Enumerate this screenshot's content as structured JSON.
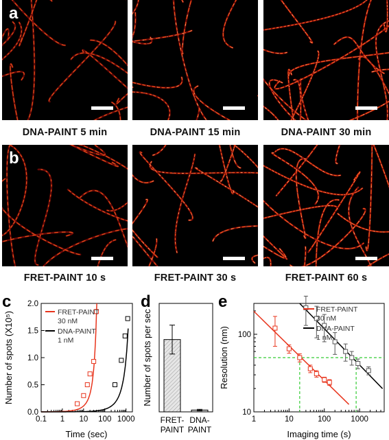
{
  "panel_labels": {
    "a": "a",
    "b": "b",
    "c": "c",
    "d": "d",
    "e": "e"
  },
  "row_a_captions": [
    "DNA-PAINT  5 min",
    "DNA-PAINT  15 min",
    "DNA-PAINT  30 min"
  ],
  "row_b_captions": [
    "FRET-PAINT  10 s",
    "FRET-PAINT  30 s",
    "FRET-PAINT  60 s"
  ],
  "colors": {
    "fret": "#e8341c",
    "dna": "#000000",
    "guide": "#33cc33",
    "bar_fill": "#d9d9d9"
  },
  "chart_data": [
    {
      "id": "c",
      "type": "scatter",
      "xlabel": "Time (sec)",
      "ylabel": "Number of spots (X10⁵)",
      "x_scale": "log",
      "xlim": [
        0.1,
        2000
      ],
      "ylim": [
        0,
        2.0
      ],
      "x_ticks": [
        0.1,
        1,
        10,
        100,
        1000
      ],
      "x_tick_labels": [
        "0.1",
        "1",
        "10",
        "100",
        "1000"
      ],
      "y_ticks": [
        0.0,
        0.5,
        1.0,
        1.5,
        2.0
      ],
      "y_tick_labels": [
        "0.0",
        "0.5",
        "1.0",
        "1.5",
        "2.0"
      ],
      "legend": [
        "FRET-PAINT",
        "30 nM",
        "DNA-PAINT",
        "1 nM"
      ],
      "legend_placement": "top-left",
      "series": [
        {
          "name": "FRET-PAINT 30 nM",
          "x": [
            5,
            10,
            15,
            20,
            30,
            40
          ],
          "y": [
            0.15,
            0.3,
            0.5,
            0.7,
            0.93,
            1.85
          ]
        },
        {
          "name": "DNA-PAINT 1 nM",
          "x": [
            300,
            600,
            900,
            1200
          ],
          "y": [
            0.5,
            0.95,
            1.4,
            1.72
          ]
        }
      ]
    },
    {
      "id": "d",
      "type": "bar",
      "ylabel": "Number of spots per sec",
      "categories": [
        "FRET-\nPAINT",
        "DNA-\nPAINT"
      ],
      "values": [
        200,
        5
      ],
      "errors": [
        40,
        2
      ],
      "ylim": [
        0,
        300
      ]
    },
    {
      "id": "e",
      "type": "scatter",
      "xlabel": "Imaging time (s)",
      "ylabel": "Resolution (nm)",
      "x_scale": "log",
      "y_scale": "log",
      "xlim": [
        1,
        5000
      ],
      "ylim": [
        10,
        250
      ],
      "x_ticks": [
        1,
        10,
        100,
        1000
      ],
      "x_tick_labels": [
        "1",
        "10",
        "100",
        "1000"
      ],
      "y_ticks": [
        10,
        100
      ],
      "y_tick_labels": [
        "10",
        "100"
      ],
      "legend": [
        "FRET-PAINT",
        "30 nM",
        "DNA-PAINT",
        "1 nM"
      ],
      "legend_placement": "top-right",
      "guides": {
        "y": 50,
        "x": [
          20,
          800
        ]
      },
      "series": [
        {
          "name": "FRET-PAINT 30 nM",
          "x": [
            4,
            10,
            20,
            40,
            60,
            100,
            140
          ],
          "y": [
            120,
            65,
            50,
            36,
            31,
            26,
            24
          ],
          "err": [
            50,
            8,
            6,
            4,
            3,
            2,
            2
          ]
        },
        {
          "name": "DNA-PAINT 1 nM",
          "x": [
            30,
            60,
            100,
            200,
            400,
            600,
            900,
            1800
          ],
          "y": [
            220,
            160,
            130,
            80,
            60,
            50,
            42,
            34
          ],
          "err": [
            90,
            70,
            50,
            25,
            15,
            10,
            6,
            4
          ]
        }
      ]
    }
  ]
}
